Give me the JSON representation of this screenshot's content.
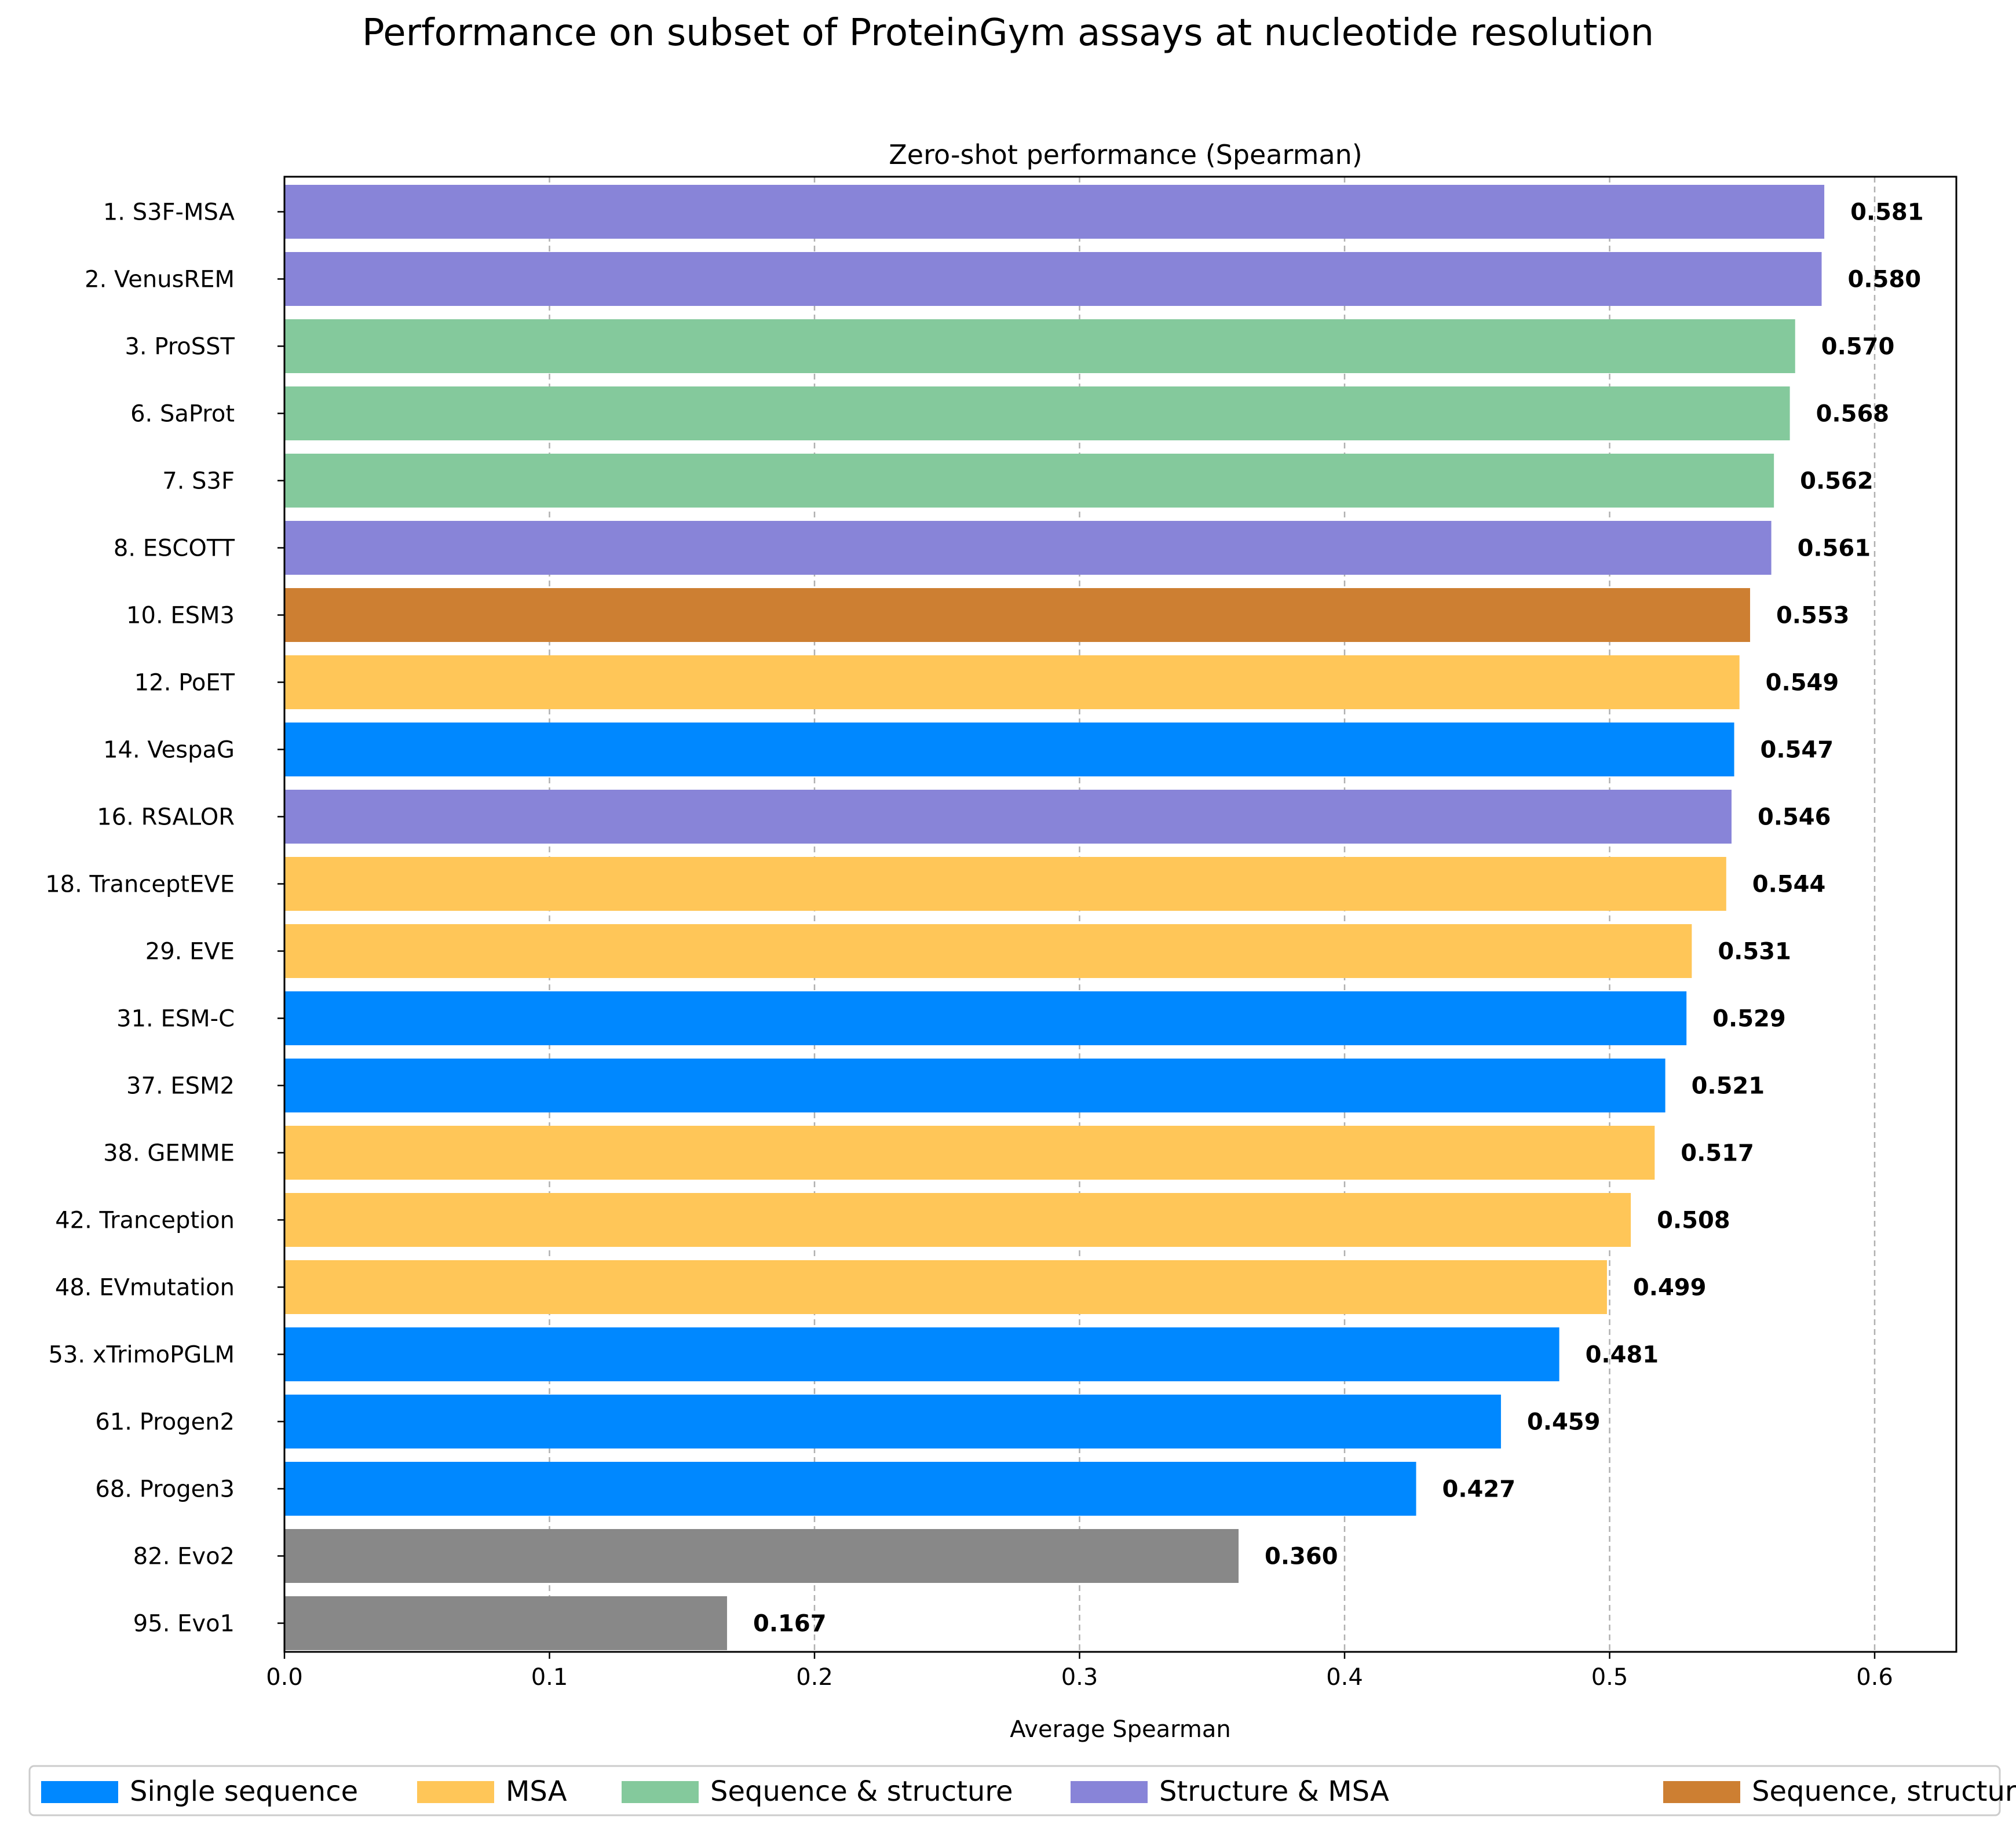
{
  "chart_data": {
    "type": "bar",
    "orientation": "horizontal",
    "title": "Performance on subset of ProteinGym assays at nucleotide resolution",
    "subtitle": "Zero-shot performance (Spearman)",
    "xlabel": "Average Spearman",
    "ylabel": "",
    "xlim": [
      0,
      0.63
    ],
    "xticks": [
      0.0,
      0.1,
      0.2,
      0.3,
      0.4,
      0.5,
      0.6
    ],
    "xtick_labels": [
      "0.0",
      "0.1",
      "0.2",
      "0.3",
      "0.4",
      "0.5",
      "0.6"
    ],
    "grid": "x-dashed",
    "legend_placement": "bottom",
    "categories": [
      "1. S3F-MSA",
      "2. VenusREM",
      "3. ProSST",
      "6. SaProt",
      "7. S3F",
      "8. ESCOTT",
      "10. ESM3",
      "12. PoET",
      "14. VespaG",
      "16. RSALOR",
      "18. TranceptEVE",
      "29. EVE",
      "31. ESM-C",
      "37. ESM2",
      "38. GEMME",
      "42. Tranception",
      "48. EVmutation",
      "53. xTrimoPGLM",
      "61. Progen2",
      "68. Progen3",
      "82. Evo2",
      "95. Evo1"
    ],
    "values": [
      0.581,
      0.58,
      0.57,
      0.568,
      0.562,
      0.561,
      0.553,
      0.549,
      0.547,
      0.546,
      0.544,
      0.531,
      0.529,
      0.521,
      0.517,
      0.508,
      0.499,
      0.481,
      0.459,
      0.427,
      0.36,
      0.167
    ],
    "value_labels": [
      "0.581",
      "0.580",
      "0.570",
      "0.568",
      "0.562",
      "0.561",
      "0.553",
      "0.549",
      "0.547",
      "0.546",
      "0.544",
      "0.531",
      "0.529",
      "0.521",
      "0.517",
      "0.508",
      "0.499",
      "0.481",
      "0.459",
      "0.427",
      "0.360",
      "0.167"
    ],
    "groups": [
      "struct_msa",
      "struct_msa",
      "seq_struct",
      "seq_struct",
      "seq_struct",
      "struct_msa",
      "seq_struct_func",
      "msa",
      "single",
      "struct_msa",
      "msa",
      "msa",
      "single",
      "single",
      "msa",
      "msa",
      "msa",
      "single",
      "single",
      "single",
      "other",
      "other"
    ],
    "group_colors": {
      "single": "#0088ff",
      "msa": "#ffc658",
      "seq_struct": "#84c99c",
      "struct_msa": "#8884d8",
      "seq_struct_func": "#cd7f32",
      "other": "#888888"
    },
    "legend": [
      {
        "label": "Single sequence",
        "key": "single"
      },
      {
        "label": "MSA",
        "key": "msa"
      },
      {
        "label": "Sequence & structure",
        "key": "seq_struct"
      },
      {
        "label": "Structure & MSA",
        "key": "struct_msa"
      },
      {
        "label": "Sequence, structure & function",
        "key": "seq_struct_func"
      }
    ]
  }
}
